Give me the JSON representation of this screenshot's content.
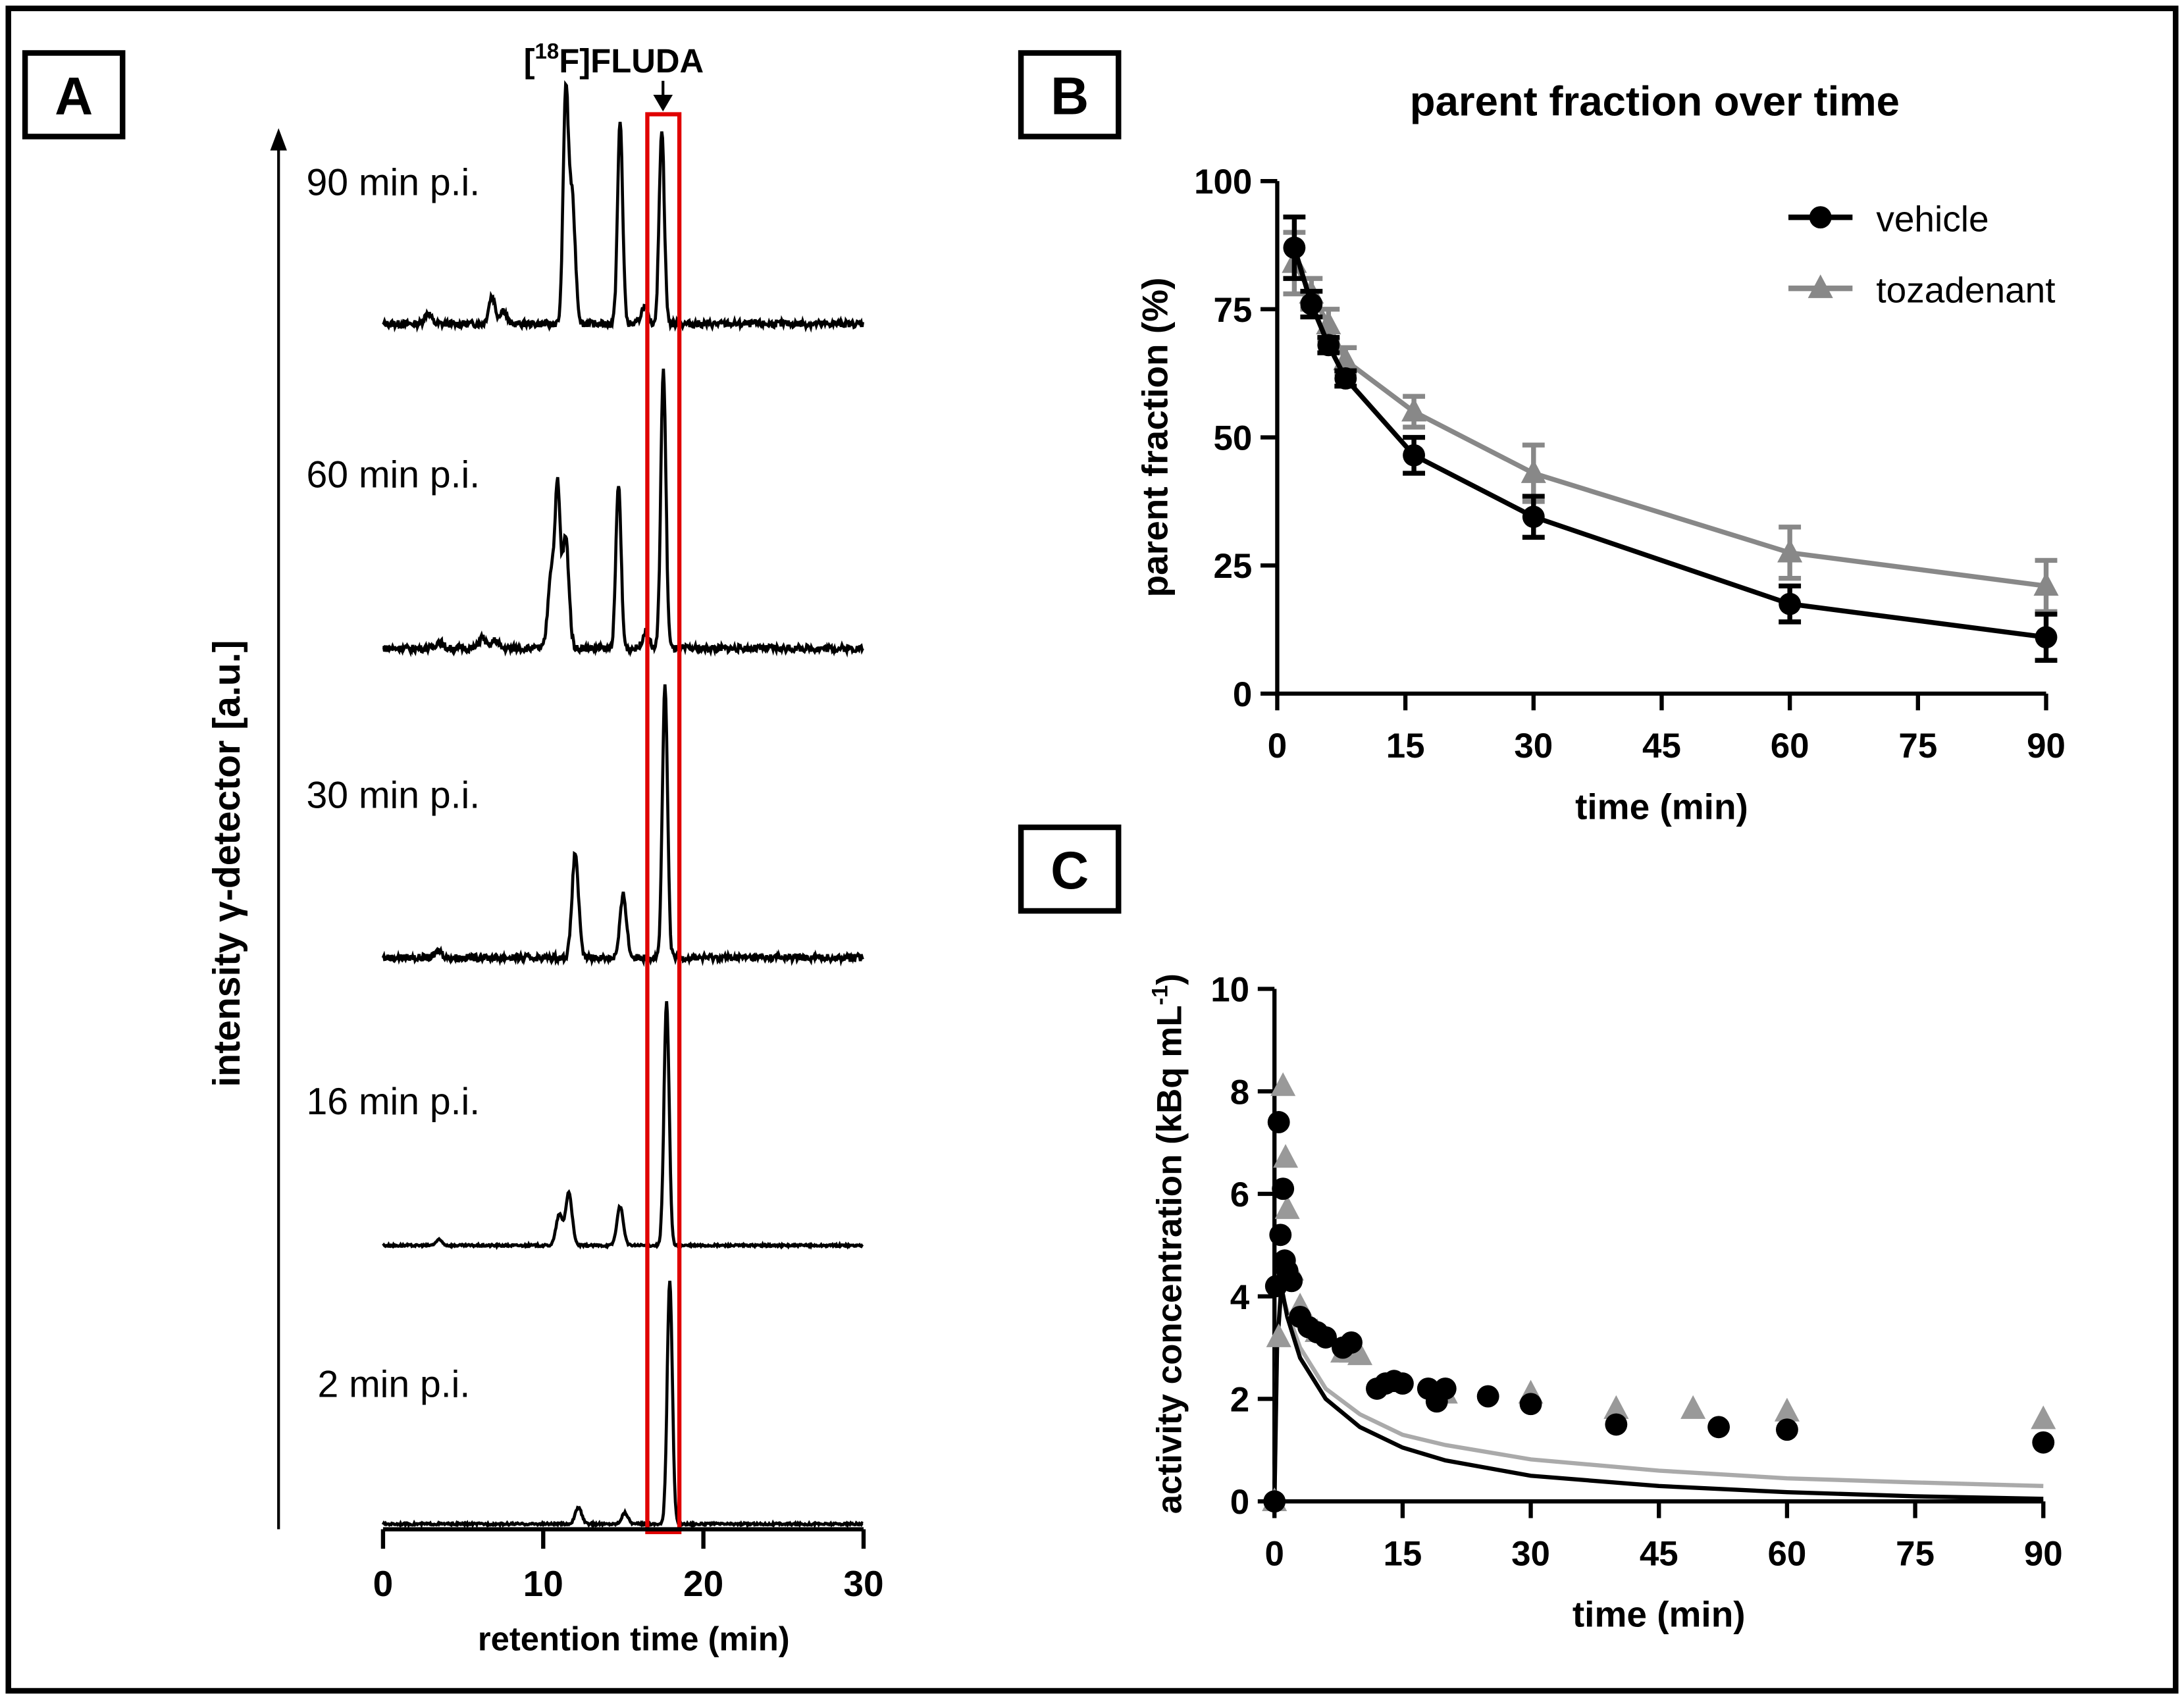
{
  "chart_data": [
    {
      "panel": "A",
      "type": "line",
      "title": "[18F]FLUDA",
      "title_parts": {
        "pre": "[",
        "sup": "18",
        "post": "F]FLUDA"
      },
      "xlabel": "retention time (min)",
      "ylabel": "intensity γ-detector [a.u.]",
      "xlim": [
        0,
        30
      ],
      "xticks": [
        0,
        10,
        20,
        30
      ],
      "highlight_window_min": [
        16.5,
        18.5
      ],
      "highlight_color": "#e00000",
      "traces": [
        {
          "label": "90 min p.i.",
          "peaks": [
            [
              2.8,
              8
            ],
            [
              6.8,
              20
            ],
            [
              7.5,
              10
            ],
            [
              11.4,
              160
            ],
            [
              11.8,
              90
            ],
            [
              14.8,
              145
            ],
            [
              16.3,
              12
            ],
            [
              17.4,
              140
            ]
          ]
        },
        {
          "label": "60 min p.i.",
          "peaks": [
            [
              3.5,
              5
            ],
            [
              6.2,
              8
            ],
            [
              7.0,
              6
            ],
            [
              10.5,
              55
            ],
            [
              10.9,
              110
            ],
            [
              11.4,
              80
            ],
            [
              14.7,
              118
            ],
            [
              16.4,
              12
            ],
            [
              17.5,
              200
            ]
          ]
        },
        {
          "label": "30 min p.i.",
          "peaks": [
            [
              3.5,
              5
            ],
            [
              12.0,
              75
            ],
            [
              15.0,
              45
            ],
            [
              17.6,
              195
            ]
          ]
        },
        {
          "label": "16 min p.i.",
          "peaks": [
            [
              3.5,
              4
            ],
            [
              11.0,
              22
            ],
            [
              11.6,
              38
            ],
            [
              14.8,
              28
            ],
            [
              17.7,
              175
            ]
          ]
        },
        {
          "label": "2 min p.i.",
          "peaks": [
            [
              12.2,
              12
            ],
            [
              15.1,
              8
            ],
            [
              17.9,
              175
            ]
          ]
        }
      ]
    },
    {
      "panel": "B",
      "type": "line",
      "title": "parent fraction over time",
      "xlabel": "time (min)",
      "ylabel": "parent fraction (%)",
      "xlim": [
        0,
        90
      ],
      "ylim": [
        0,
        100
      ],
      "xticks": [
        0,
        15,
        30,
        45,
        60,
        75,
        90
      ],
      "yticks": [
        0,
        25,
        50,
        75,
        100
      ],
      "legend_position": "top-right",
      "series": [
        {
          "name": "vehicle",
          "color": "#000000",
          "marker": "circle",
          "x": [
            2,
            4,
            6,
            8,
            16,
            30,
            60,
            90
          ],
          "y": [
            87,
            76,
            68,
            61.5,
            46.5,
            34.5,
            17.5,
            11
          ],
          "err": [
            6,
            2.5,
            1.5,
            1.5,
            3.5,
            4,
            3.5,
            4.5
          ]
        },
        {
          "name": "tozadenant",
          "color": "#888888",
          "marker": "triangle",
          "x": [
            2,
            4,
            6,
            8,
            16,
            30,
            60,
            90
          ],
          "y": [
            84,
            78,
            72,
            65,
            55,
            43,
            27.5,
            21
          ],
          "err": [
            6,
            3,
            3,
            2.5,
            3,
            5.5,
            5,
            5
          ]
        }
      ]
    },
    {
      "panel": "C",
      "type": "scatter",
      "xlabel": "time (min)",
      "ylabel_parts": {
        "pre": "activity concentration (kBq mL",
        "sup": "-1",
        "post": ")"
      },
      "xlim": [
        0,
        90
      ],
      "ylim": [
        0,
        10
      ],
      "xticks": [
        0,
        15,
        30,
        45,
        60,
        75,
        90
      ],
      "yticks": [
        0,
        2,
        4,
        6,
        8,
        10
      ],
      "series": [
        {
          "name": "vehicle",
          "color": "#000000",
          "marker": "circle",
          "x": [
            0,
            0.2,
            0.5,
            0.7,
            1,
            1.2,
            1.5,
            2,
            3,
            4,
            5,
            6,
            8,
            9,
            12,
            13,
            14,
            15,
            18,
            19,
            20,
            25,
            30,
            40,
            52,
            60,
            90
          ],
          "y": [
            0,
            4.2,
            7.4,
            5.2,
            6.1,
            4.7,
            4.5,
            4.3,
            3.6,
            3.4,
            3.3,
            3.2,
            3.0,
            3.1,
            2.2,
            2.3,
            2.35,
            2.3,
            2.2,
            1.95,
            2.2,
            2.05,
            1.9,
            1.5,
            1.45,
            1.4,
            1.15
          ],
          "fit_x": [
            0,
            0.3,
            0.8,
            1.5,
            3,
            6,
            10,
            15,
            20,
            30,
            45,
            60,
            75,
            90
          ],
          "fit_y": [
            0,
            3.0,
            4.2,
            3.6,
            2.8,
            2.0,
            1.45,
            1.05,
            0.8,
            0.5,
            0.3,
            0.18,
            0.1,
            0.05
          ]
        },
        {
          "name": "tozadenant",
          "color": "#999999",
          "marker": "triangle",
          "x": [
            0,
            0.5,
            1,
            1.3,
            1.5,
            2,
            3,
            5,
            8,
            9,
            10,
            20,
            30,
            40,
            49,
            60,
            90
          ],
          "y": [
            0,
            3.2,
            8.1,
            6.7,
            5.7,
            4.5,
            3.8,
            3.3,
            2.9,
            2.9,
            2.85,
            2.1,
            2.1,
            1.8,
            1.8,
            1.75,
            1.6
          ],
          "fit_x": [
            0,
            0.3,
            0.8,
            1.5,
            3,
            6,
            10,
            15,
            20,
            30,
            45,
            60,
            75,
            90
          ],
          "fit_y": [
            0,
            3.0,
            4.1,
            3.7,
            3.0,
            2.2,
            1.7,
            1.3,
            1.1,
            0.82,
            0.6,
            0.45,
            0.37,
            0.3
          ]
        }
      ]
    }
  ],
  "panel_labels": {
    "a": "A",
    "b": "B",
    "c": "C"
  }
}
